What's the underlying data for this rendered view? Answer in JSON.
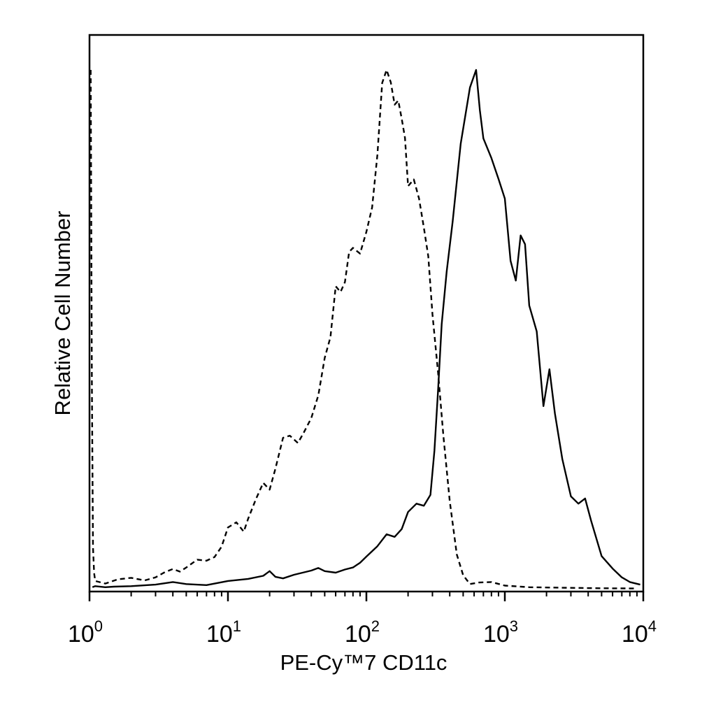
{
  "chart_data": {
    "type": "line",
    "title": "",
    "xlabel": "PE-Cy™7 CD11c",
    "ylabel": "Relative Cell Number",
    "x_scale": "log",
    "xlim": [
      1,
      10000
    ],
    "ylim": [
      0,
      100
    ],
    "grid": false,
    "legend": "none",
    "x_ticks": [
      {
        "base": "10",
        "exp": "0",
        "value": 1
      },
      {
        "base": "10",
        "exp": "1",
        "value": 10
      },
      {
        "base": "10",
        "exp": "2",
        "value": 100
      },
      {
        "base": "10",
        "exp": "3",
        "value": 1000
      },
      {
        "base": "10",
        "exp": "4",
        "value": 10000
      }
    ],
    "series": [
      {
        "style": "dashed",
        "color": "#000000",
        "points": [
          [
            1.02,
            100
          ],
          [
            1.04,
            40
          ],
          [
            1.06,
            8
          ],
          [
            1.08,
            3
          ],
          [
            1.1,
            1.5
          ],
          [
            1.3,
            1
          ],
          [
            1.6,
            1.8
          ],
          [
            2.0,
            2.1
          ],
          [
            2.5,
            1.6
          ],
          [
            3.0,
            2.2
          ],
          [
            3.5,
            3.2
          ],
          [
            4.0,
            3.8
          ],
          [
            4.5,
            3.3
          ],
          [
            5.0,
            4.1
          ],
          [
            6.0,
            5.6
          ],
          [
            7.0,
            5.4
          ],
          [
            8.0,
            6.1
          ],
          [
            9.0,
            8.1
          ],
          [
            10,
            11.8
          ],
          [
            11.5,
            12.8
          ],
          [
            13,
            11.0
          ],
          [
            14,
            13.5
          ],
          [
            16,
            17.4
          ],
          [
            18,
            20.4
          ],
          [
            20,
            19.1
          ],
          [
            22,
            23.1
          ],
          [
            25,
            29.1
          ],
          [
            28,
            29.5
          ],
          [
            32,
            28.1
          ],
          [
            35,
            29.9
          ],
          [
            40,
            32.9
          ],
          [
            45,
            37.3
          ],
          [
            50,
            44.5
          ],
          [
            55,
            48.5
          ],
          [
            60,
            58.3
          ],
          [
            65,
            57.2
          ],
          [
            70,
            59.1
          ],
          [
            75,
            64.9
          ],
          [
            80,
            65.7
          ],
          [
            90,
            64.6
          ],
          [
            100,
            68.8
          ],
          [
            110,
            73.5
          ],
          [
            120,
            83.6
          ],
          [
            130,
            97.5
          ],
          [
            140,
            100
          ],
          [
            150,
            97.6
          ],
          [
            160,
            93.3
          ],
          [
            170,
            94.1
          ],
          [
            180,
            90.6
          ],
          [
            190,
            86.9
          ],
          [
            200,
            77.6
          ],
          [
            220,
            78.9
          ],
          [
            240,
            75.2
          ],
          [
            260,
            69.6
          ],
          [
            280,
            64.1
          ],
          [
            300,
            52.9
          ],
          [
            330,
            41.4
          ],
          [
            360,
            29.5
          ],
          [
            400,
            16.9
          ],
          [
            450,
            6.6
          ],
          [
            500,
            2.6
          ],
          [
            560,
            0.9
          ],
          [
            650,
            1.2
          ],
          [
            800,
            1.3
          ],
          [
            1000,
            0.6
          ],
          [
            1500,
            0.3
          ],
          [
            2500,
            0.2
          ],
          [
            5000,
            0.1
          ],
          [
            9000,
            0.05
          ]
        ]
      },
      {
        "style": "solid",
        "color": "#000000",
        "points": [
          [
            1.05,
            0.3
          ],
          [
            1.1,
            0.5
          ],
          [
            1.3,
            0.3
          ],
          [
            1.5,
            0.4
          ],
          [
            2.0,
            0.5
          ],
          [
            3.0,
            0.8
          ],
          [
            4.0,
            1.3
          ],
          [
            5.0,
            0.9
          ],
          [
            7.0,
            0.7
          ],
          [
            10,
            1.5
          ],
          [
            14,
            1.9
          ],
          [
            18,
            2.5
          ],
          [
            20,
            3.4
          ],
          [
            22,
            2.3
          ],
          [
            25,
            2.0
          ],
          [
            30,
            2.7
          ],
          [
            40,
            3.5
          ],
          [
            45,
            4.0
          ],
          [
            50,
            3.4
          ],
          [
            60,
            3.1
          ],
          [
            70,
            3.7
          ],
          [
            80,
            4.1
          ],
          [
            90,
            5.0
          ],
          [
            100,
            6.2
          ],
          [
            120,
            8.2
          ],
          [
            140,
            10.5
          ],
          [
            160,
            10.0
          ],
          [
            180,
            11.5
          ],
          [
            200,
            14.8
          ],
          [
            230,
            16.4
          ],
          [
            260,
            16.0
          ],
          [
            290,
            18.1
          ],
          [
            310,
            26.6
          ],
          [
            330,
            38.7
          ],
          [
            350,
            51.0
          ],
          [
            380,
            61.1
          ],
          [
            420,
            70.8
          ],
          [
            480,
            85.8
          ],
          [
            560,
            96.6
          ],
          [
            620,
            100
          ],
          [
            660,
            92.2
          ],
          [
            700,
            86.8
          ],
          [
            800,
            83.0
          ],
          [
            900,
            79.0
          ],
          [
            1000,
            75.2
          ],
          [
            1100,
            63.2
          ],
          [
            1200,
            59.4
          ],
          [
            1300,
            68.1
          ],
          [
            1400,
            66.4
          ],
          [
            1500,
            54.6
          ],
          [
            1700,
            49.6
          ],
          [
            1900,
            35.2
          ],
          [
            2100,
            42.3
          ],
          [
            2300,
            33.8
          ],
          [
            2600,
            25.0
          ],
          [
            3000,
            17.8
          ],
          [
            3400,
            16.4
          ],
          [
            3800,
            17.4
          ],
          [
            4200,
            13.1
          ],
          [
            5000,
            6.3
          ],
          [
            6000,
            3.9
          ],
          [
            7000,
            2.2
          ],
          [
            8000,
            1.3
          ],
          [
            9500,
            0.8
          ]
        ]
      }
    ]
  }
}
